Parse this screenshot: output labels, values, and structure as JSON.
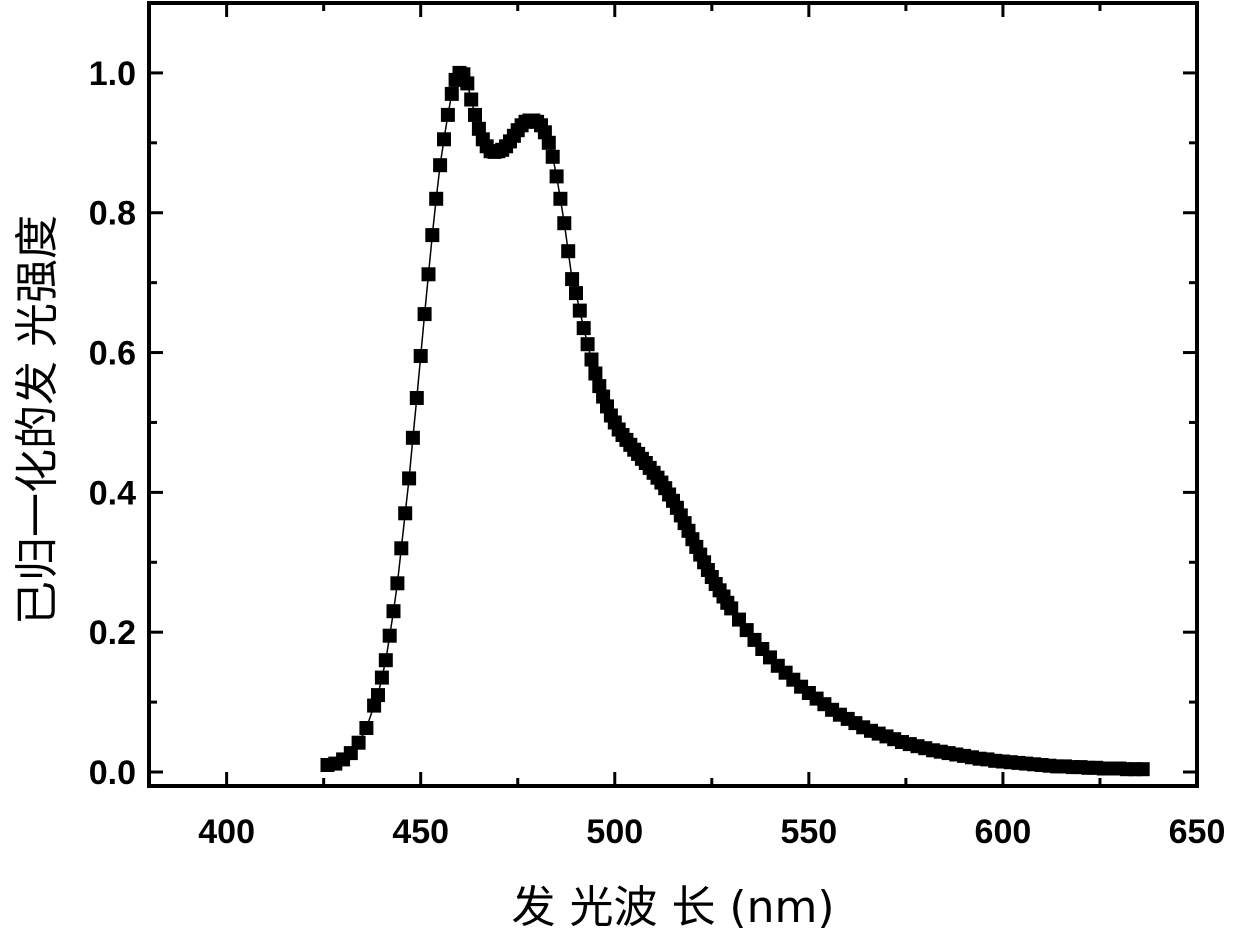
{
  "chart_data": {
    "type": "scatter",
    "title": "",
    "xlabel": "发 光波 长 (nm)",
    "ylabel": "已归一化的发 光强度",
    "xlim": [
      380,
      650
    ],
    "ylim": [
      -0.02,
      1.1
    ],
    "x_ticks": [
      "400",
      "450",
      "500",
      "550",
      "600",
      "650"
    ],
    "y_ticks": [
      "0.0",
      "0.2",
      "0.4",
      "0.6",
      "0.8",
      "1.0"
    ],
    "grid": false,
    "legend": "none",
    "marker": "square",
    "line": "connected",
    "color": "#000000",
    "series": [
      {
        "x": [
          426,
          428,
          430,
          432,
          434,
          436,
          438,
          439,
          440,
          441,
          442,
          443,
          444,
          445,
          446,
          447,
          448,
          449,
          450,
          451,
          452,
          453,
          454,
          455,
          456,
          457,
          458,
          459,
          460,
          461,
          462,
          463,
          464,
          465,
          466,
          467,
          468,
          469,
          470,
          471,
          472,
          473,
          474,
          475,
          476,
          477,
          478,
          479,
          480,
          481,
          482,
          483,
          484,
          485,
          486,
          487,
          488,
          489,
          490,
          491,
          492,
          493,
          494,
          495,
          496,
          497,
          498,
          499,
          500,
          501,
          502,
          503,
          504,
          505,
          506,
          507,
          508,
          509,
          510,
          511,
          512,
          513,
          514,
          515,
          516,
          517,
          518,
          519,
          520,
          521,
          522,
          523,
          524,
          525,
          526,
          527,
          528,
          529,
          530,
          532,
          534,
          536,
          538,
          540,
          542,
          544,
          546,
          548,
          550,
          552,
          554,
          556,
          558,
          560,
          562,
          564,
          566,
          568,
          570,
          572,
          574,
          576,
          578,
          580,
          582,
          584,
          586,
          588,
          590,
          592,
          594,
          596,
          598,
          600,
          602,
          604,
          606,
          608,
          610,
          612,
          614,
          616,
          618,
          620,
          622,
          624,
          626,
          628,
          630,
          632,
          634,
          636
        ],
        "y": [
          0.01,
          0.012,
          0.018,
          0.027,
          0.042,
          0.063,
          0.095,
          0.11,
          0.135,
          0.16,
          0.195,
          0.23,
          0.27,
          0.32,
          0.37,
          0.42,
          0.478,
          0.535,
          0.595,
          0.655,
          0.712,
          0.768,
          0.82,
          0.868,
          0.905,
          0.94,
          0.97,
          0.99,
          1.0,
          0.998,
          0.985,
          0.962,
          0.94,
          0.92,
          0.905,
          0.895,
          0.888,
          0.887,
          0.888,
          0.89,
          0.895,
          0.902,
          0.91,
          0.918,
          0.925,
          0.93,
          0.932,
          0.932,
          0.93,
          0.925,
          0.915,
          0.9,
          0.88,
          0.852,
          0.82,
          0.785,
          0.745,
          0.705,
          0.685,
          0.66,
          0.635,
          0.612,
          0.59,
          0.57,
          0.552,
          0.537,
          0.523,
          0.51,
          0.5,
          0.49,
          0.482,
          0.475,
          0.468,
          0.461,
          0.455,
          0.448,
          0.442,
          0.435,
          0.428,
          0.421,
          0.414,
          0.406,
          0.397,
          0.388,
          0.378,
          0.367,
          0.356,
          0.345,
          0.333,
          0.322,
          0.311,
          0.3,
          0.289,
          0.279,
          0.269,
          0.26,
          0.251,
          0.242,
          0.234,
          0.218,
          0.203,
          0.189,
          0.176,
          0.164,
          0.152,
          0.142,
          0.132,
          0.122,
          0.113,
          0.105,
          0.097,
          0.089,
          0.082,
          0.076,
          0.07,
          0.064,
          0.059,
          0.055,
          0.051,
          0.047,
          0.043,
          0.04,
          0.037,
          0.034,
          0.031,
          0.029,
          0.027,
          0.025,
          0.023,
          0.021,
          0.019,
          0.018,
          0.016,
          0.015,
          0.014,
          0.013,
          0.012,
          0.011,
          0.01,
          0.009,
          0.008,
          0.008,
          0.007,
          0.007,
          0.006,
          0.006,
          0.005,
          0.005,
          0.005,
          0.004,
          0.004,
          0.004
        ]
      }
    ]
  }
}
